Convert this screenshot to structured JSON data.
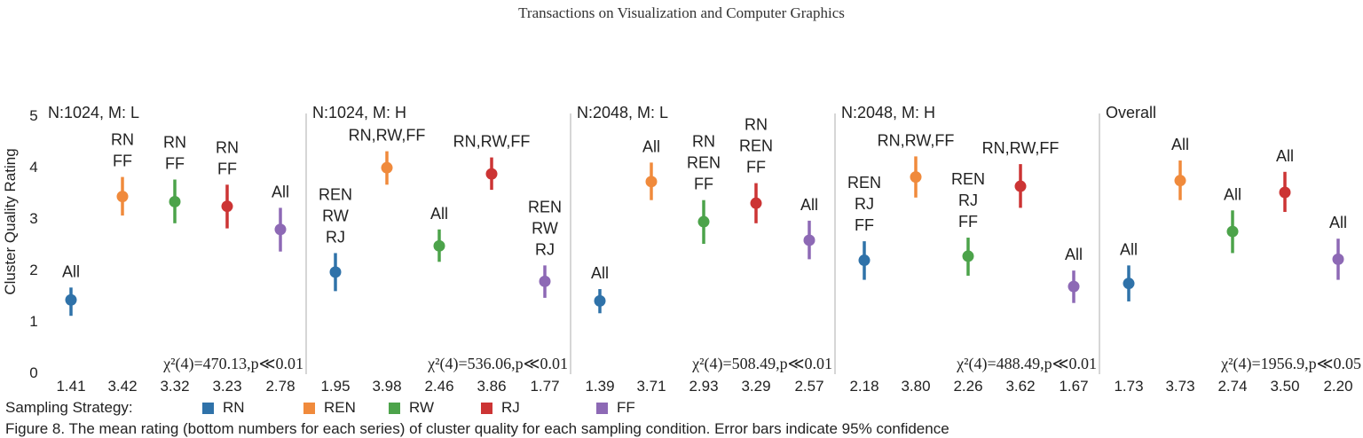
{
  "header": "Transactions on Visualization and Computer Graphics",
  "chart_data": {
    "type": "scatter",
    "ylabel": "Cluster Quality Rating",
    "xlabel": "",
    "ylim": [
      0,
      5
    ],
    "yticks": [
      0,
      1,
      2,
      3,
      4,
      5
    ],
    "grid": false,
    "legend": {
      "title": "Sampling Strategy:",
      "placement": "bottom",
      "items": [
        {
          "name": "RN",
          "color": "#2f72a9"
        },
        {
          "name": "REN",
          "color": "#f08a3c"
        },
        {
          "name": "RW",
          "color": "#4ca34a"
        },
        {
          "name": "RJ",
          "color": "#cc3434"
        },
        {
          "name": "FF",
          "color": "#8d69b5"
        }
      ]
    },
    "panels": [
      {
        "title": "N:1024, M: L",
        "stat": "χ²(4)=470.13,p≪0.01",
        "points": [
          {
            "strategy": "RN",
            "mean": 1.41,
            "low": 1.1,
            "high": 1.65,
            "label": [
              "All"
            ]
          },
          {
            "strategy": "REN",
            "mean": 3.42,
            "low": 3.05,
            "high": 3.8,
            "label": [
              "RN",
              "FF"
            ]
          },
          {
            "strategy": "RW",
            "mean": 3.32,
            "low": 2.9,
            "high": 3.75,
            "label": [
              "RN",
              "FF"
            ]
          },
          {
            "strategy": "RJ",
            "mean": 3.23,
            "low": 2.8,
            "high": 3.65,
            "label": [
              "RN",
              "FF"
            ]
          },
          {
            "strategy": "FF",
            "mean": 2.78,
            "low": 2.35,
            "high": 3.2,
            "label": [
              "All"
            ]
          }
        ]
      },
      {
        "title": "N:1024, M: H",
        "stat": "χ²(4)=536.06,p≪0.01",
        "points": [
          {
            "strategy": "RN",
            "mean": 1.95,
            "low": 1.58,
            "high": 2.32,
            "label": [
              "REN",
              "RW",
              "RJ"
            ]
          },
          {
            "strategy": "REN",
            "mean": 3.98,
            "low": 3.65,
            "high": 4.3,
            "label": [
              "RN,RW,FF"
            ]
          },
          {
            "strategy": "RW",
            "mean": 2.46,
            "low": 2.15,
            "high": 2.78,
            "label": [
              "All"
            ]
          },
          {
            "strategy": "RJ",
            "mean": 3.86,
            "low": 3.55,
            "high": 4.18,
            "label": [
              "RN,RW,FF"
            ]
          },
          {
            "strategy": "FF",
            "mean": 1.77,
            "low": 1.45,
            "high": 2.08,
            "label": [
              "REN",
              "RW",
              "RJ"
            ]
          }
        ]
      },
      {
        "title": "N:2048, M: L",
        "stat": "χ²(4)=508.49,p≪0.01",
        "points": [
          {
            "strategy": "RN",
            "mean": 1.39,
            "low": 1.15,
            "high": 1.62,
            "label": [
              "All"
            ]
          },
          {
            "strategy": "REN",
            "mean": 3.71,
            "low": 3.35,
            "high": 4.08,
            "label": [
              "All"
            ]
          },
          {
            "strategy": "RW",
            "mean": 2.93,
            "low": 2.5,
            "high": 3.35,
            "label": [
              "RN",
              "REN",
              "FF"
            ]
          },
          {
            "strategy": "RJ",
            "mean": 3.29,
            "low": 2.9,
            "high": 3.68,
            "label": [
              "RN",
              "REN",
              "FF"
            ]
          },
          {
            "strategy": "FF",
            "mean": 2.57,
            "low": 2.2,
            "high": 2.95,
            "label": [
              "All"
            ]
          }
        ]
      },
      {
        "title": "N:2048, M: H",
        "stat": "χ²(4)=488.49,p≪0.01",
        "points": [
          {
            "strategy": "RN",
            "mean": 2.18,
            "low": 1.8,
            "high": 2.55,
            "label": [
              "REN",
              "RJ",
              "FF"
            ]
          },
          {
            "strategy": "REN",
            "mean": 3.8,
            "low": 3.4,
            "high": 4.2,
            "label": [
              "RN,RW,FF"
            ]
          },
          {
            "strategy": "RW",
            "mean": 2.26,
            "low": 1.88,
            "high": 2.62,
            "label": [
              "REN",
              "RJ",
              "FF"
            ]
          },
          {
            "strategy": "RJ",
            "mean": 3.62,
            "low": 3.2,
            "high": 4.05,
            "label": [
              "RN,RW,FF"
            ]
          },
          {
            "strategy": "FF",
            "mean": 1.67,
            "low": 1.35,
            "high": 1.98,
            "label": [
              "All"
            ]
          }
        ]
      },
      {
        "title": "Overall",
        "stat": "χ²(4)=1956.9,p≪0.05",
        "points": [
          {
            "strategy": "RN",
            "mean": 1.73,
            "low": 1.38,
            "high": 2.08,
            "label": [
              "All"
            ]
          },
          {
            "strategy": "REN",
            "mean": 3.73,
            "low": 3.35,
            "high": 4.12,
            "label": [
              "All"
            ]
          },
          {
            "strategy": "RW",
            "mean": 2.74,
            "low": 2.32,
            "high": 3.15,
            "label": [
              "All"
            ]
          },
          {
            "strategy": "RJ",
            "mean": 3.5,
            "low": 3.12,
            "high": 3.9,
            "label": [
              "All"
            ]
          },
          {
            "strategy": "FF",
            "mean": 2.2,
            "low": 1.8,
            "high": 2.6,
            "label": [
              "All"
            ]
          }
        ]
      }
    ]
  },
  "caption": "Figure 8. The mean rating (bottom numbers for each series) of cluster quality for each sampling condition. Error bars indicate 95% confidence"
}
